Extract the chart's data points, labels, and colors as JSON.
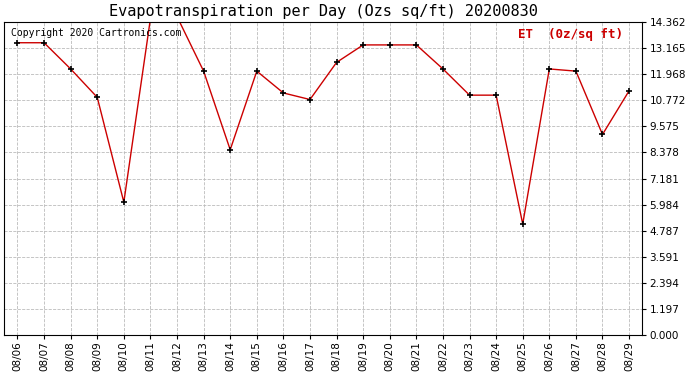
{
  "title": "Evapotranspiration per Day (Ozs sq/ft) 20200830",
  "copyright_text": "Copyright 2020 Cartronics.com",
  "legend_label": "ET  (0z/sq ft)",
  "dates": [
    "08/06",
    "08/07",
    "08/08",
    "08/09",
    "08/10",
    "08/11",
    "08/12",
    "08/13",
    "08/14",
    "08/15",
    "08/16",
    "08/17",
    "08/18",
    "08/19",
    "08/20",
    "08/21",
    "08/22",
    "08/23",
    "08/24",
    "08/25",
    "08/26",
    "08/27",
    "08/28",
    "08/29"
  ],
  "values": [
    13.4,
    13.4,
    12.2,
    10.9,
    6.1,
    14.5,
    14.6,
    12.1,
    8.5,
    12.1,
    11.1,
    10.8,
    12.5,
    13.3,
    13.3,
    13.3,
    12.2,
    11.0,
    11.0,
    5.1,
    12.2,
    12.1,
    9.2,
    11.2
  ],
  "yticks": [
    0.0,
    1.197,
    2.394,
    3.591,
    4.787,
    5.984,
    7.181,
    8.378,
    9.575,
    10.772,
    11.968,
    13.165,
    14.362
  ],
  "ylim": [
    0.0,
    14.362
  ],
  "line_color": "#cc0000",
  "marker_color": "#000000",
  "title_fontsize": 11,
  "copyright_fontsize": 7,
  "legend_fontsize": 9,
  "tick_fontsize": 7.5,
  "bg_color": "#ffffff",
  "grid_color": "#bbbbbb",
  "figwidth": 6.9,
  "figheight": 3.75,
  "dpi": 100
}
